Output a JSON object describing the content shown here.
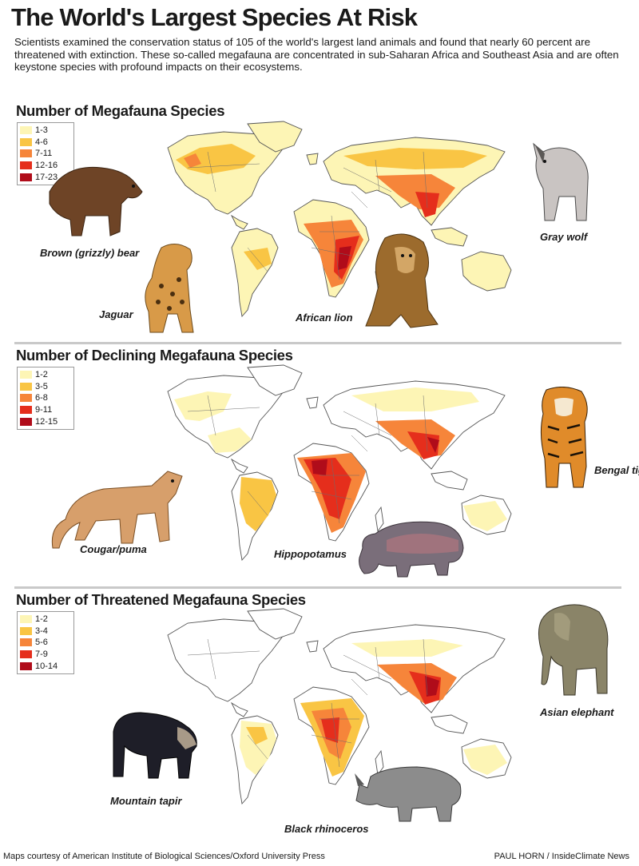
{
  "title": "The World's Largest Species At Risk",
  "intro": "Scientists examined the conservation status of 105 of the world's largest land animals and found that nearly 60 percent are threatened with extinction. These so-called megafauna are concentrated in sub-Saharan Africa and Southeast Asia and are often keystone species with profound impacts on their ecosystems.",
  "colors": {
    "c1": "#fdf5b5",
    "c2": "#f9c544",
    "c3": "#f6853a",
    "c4": "#e52e1c",
    "c5": "#b00c1a"
  },
  "sections": [
    {
      "title": "Number of Megafauna Species",
      "legend": [
        {
          "label": "1-3",
          "color": "#fdf5b5"
        },
        {
          "label": "4-6",
          "color": "#f9c544"
        },
        {
          "label": "7-11",
          "color": "#f6853a"
        },
        {
          "label": "12-16",
          "color": "#e52e1c"
        },
        {
          "label": "17-23",
          "color": "#b00c1a"
        }
      ],
      "animals": [
        {
          "caption": "Brown (grizzly) bear",
          "icon": "brown-bear-illustration"
        },
        {
          "caption": "Jaguar",
          "icon": "jaguar-illustration"
        },
        {
          "caption": "African lion",
          "icon": "african-lion-illustration"
        },
        {
          "caption": "Gray wolf",
          "icon": "gray-wolf-illustration"
        }
      ]
    },
    {
      "title": "Number of Declining Megafauna Species",
      "legend": [
        {
          "label": "1-2",
          "color": "#fdf5b5"
        },
        {
          "label": "3-5",
          "color": "#f9c544"
        },
        {
          "label": "6-8",
          "color": "#f6853a"
        },
        {
          "label": "9-11",
          "color": "#e52e1c"
        },
        {
          "label": "12-15",
          "color": "#b00c1a"
        }
      ],
      "animals": [
        {
          "caption": "Bengal tiger",
          "icon": "bengal-tiger-illustration"
        },
        {
          "caption": "Cougar/puma",
          "icon": "cougar-illustration"
        },
        {
          "caption": "Hippopotamus",
          "icon": "hippopotamus-illustration"
        }
      ]
    },
    {
      "title": "Number of Threatened Megafauna Species",
      "legend": [
        {
          "label": "1-2",
          "color": "#fdf5b5"
        },
        {
          "label": "3-4",
          "color": "#f9c544"
        },
        {
          "label": "5-6",
          "color": "#f6853a"
        },
        {
          "label": "7-9",
          "color": "#e52e1c"
        },
        {
          "label": "10-14",
          "color": "#b00c1a"
        }
      ],
      "animals": [
        {
          "caption": "Asian elephant",
          "icon": "asian-elephant-illustration"
        },
        {
          "caption": "Mountain tapir",
          "icon": "mountain-tapir-illustration"
        },
        {
          "caption": "Black rhinoceros",
          "icon": "black-rhinoceros-illustration"
        }
      ]
    }
  ],
  "footer": {
    "credit_left": "Maps courtesy of American Institute of Biological Sciences/Oxford University Press",
    "credit_right": "PAUL HORN / InsideClimate News"
  }
}
